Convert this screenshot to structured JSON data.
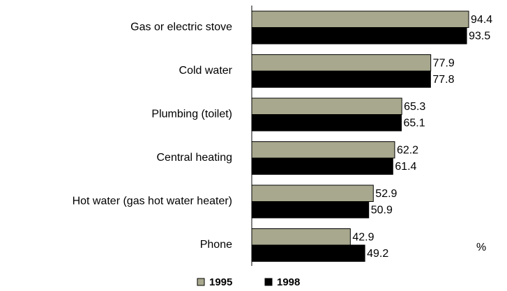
{
  "chart_data": {
    "type": "hbar",
    "categories": [
      "Gas or electric stove",
      "Cold water",
      "Plumbing (toilet)",
      "Central heating",
      "Hot water (gas hot water heater)",
      "Phone"
    ],
    "series": [
      {
        "name": "1995",
        "color": "#a8a88e",
        "values": [
          94.4,
          77.9,
          65.3,
          62.2,
          52.9,
          42.9
        ]
      },
      {
        "name": "1998",
        "color": "#000000",
        "values": [
          93.5,
          77.8,
          65.1,
          61.4,
          50.9,
          49.2
        ]
      }
    ],
    "xlabel": "%",
    "legend": "bottom"
  }
}
